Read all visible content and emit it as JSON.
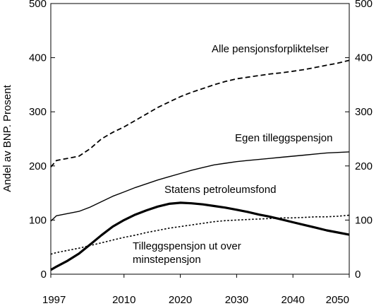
{
  "chart_data": {
    "type": "line",
    "ylabel": "Andel av BNP. Prosent",
    "ylim": [
      0,
      500
    ],
    "xlim": [
      1997,
      2050
    ],
    "x_ticks": [
      {
        "value": 1997,
        "label": "1997"
      },
      {
        "value": 2010,
        "label": "2010"
      },
      {
        "value": 2020,
        "label": "2020"
      },
      {
        "value": 2030,
        "label": "2030"
      },
      {
        "value": 2040,
        "label": "2040"
      },
      {
        "value": 2050,
        "label": "2050"
      }
    ],
    "y_ticks": [
      {
        "value": 0,
        "label": "0"
      },
      {
        "value": 100,
        "label": "100"
      },
      {
        "value": 200,
        "label": "200"
      },
      {
        "value": 300,
        "label": "300"
      },
      {
        "value": 400,
        "label": "400"
      },
      {
        "value": 500,
        "label": "500"
      }
    ],
    "right_axis": true,
    "grid": false,
    "series": [
      {
        "name": "Alle pensjonsforpliktelser",
        "style": "dashed",
        "x": [
          1997,
          1998,
          2000,
          2002,
          2004,
          2006,
          2008,
          2010,
          2012,
          2014,
          2016,
          2018,
          2020,
          2022,
          2024,
          2026,
          2028,
          2030,
          2032,
          2034,
          2036,
          2038,
          2040,
          2042,
          2044,
          2046,
          2048,
          2050
        ],
        "values": [
          198,
          210,
          214,
          218,
          232,
          250,
          262,
          272,
          284,
          296,
          308,
          318,
          328,
          336,
          343,
          350,
          356,
          361,
          364,
          367,
          370,
          372,
          375,
          378,
          382,
          386,
          390,
          395
        ]
      },
      {
        "name": "Egen tilleggspensjon",
        "style": "solid",
        "x": [
          1997,
          1998,
          2000,
          2002,
          2004,
          2006,
          2008,
          2010,
          2012,
          2014,
          2016,
          2018,
          2020,
          2022,
          2024,
          2026,
          2028,
          2030,
          2032,
          2034,
          2036,
          2038,
          2040,
          2042,
          2044,
          2046,
          2048,
          2050
        ],
        "values": [
          98,
          108,
          112,
          116,
          124,
          134,
          144,
          152,
          160,
          167,
          174,
          180,
          186,
          192,
          197,
          202,
          205,
          208,
          210,
          212,
          214,
          216,
          218,
          220,
          222,
          224,
          225,
          226
        ]
      },
      {
        "name": "Statens petroleumsfond",
        "style": "bold",
        "x": [
          1997,
          1998,
          2000,
          2002,
          2004,
          2006,
          2008,
          2010,
          2012,
          2014,
          2016,
          2018,
          2020,
          2022,
          2024,
          2026,
          2028,
          2030,
          2032,
          2034,
          2036,
          2038,
          2040,
          2042,
          2044,
          2046,
          2048,
          2050
        ],
        "values": [
          8,
          14,
          25,
          38,
          55,
          72,
          88,
          100,
          110,
          118,
          125,
          130,
          132,
          131,
          129,
          126,
          123,
          119,
          115,
          110,
          106,
          101,
          96,
          91,
          86,
          81,
          77,
          73
        ]
      },
      {
        "name": "Tilleggspensjon ut over minstepensjon",
        "style": "dotted",
        "x": [
          1997,
          1998,
          2000,
          2002,
          2004,
          2006,
          2008,
          2010,
          2012,
          2014,
          2016,
          2018,
          2020,
          2022,
          2024,
          2026,
          2028,
          2030,
          2032,
          2034,
          2036,
          2038,
          2040,
          2042,
          2044,
          2046,
          2048,
          2050
        ],
        "values": [
          37,
          40,
          44,
          48,
          53,
          58,
          63,
          68,
          72,
          77,
          81,
          85,
          88,
          91,
          94,
          97,
          99,
          100,
          101,
          102,
          103,
          104,
          104,
          105,
          106,
          106,
          107,
          109
        ]
      }
    ],
    "annotations": [
      {
        "text": "Alle pensjonsforpliktelser"
      },
      {
        "text": "Egen tilleggspensjon"
      },
      {
        "text": "Statens petroleumsfond"
      },
      {
        "text": "Tilleggspensjon ut over"
      },
      {
        "text": "minstepensjon"
      }
    ]
  }
}
